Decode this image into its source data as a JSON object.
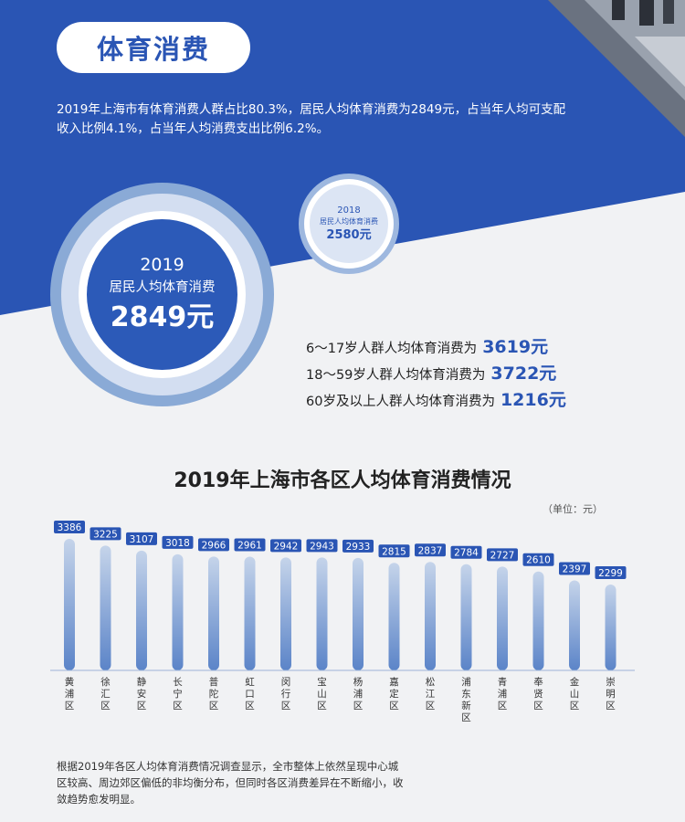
{
  "section_title": "体育消费",
  "intro_text": "2019年上海市有体育消费人群占比80.3%，居民人均体育消费为2849元，占当年人均可支配收入比例4.1%，占当年人均消费支出比例6.2%。",
  "circle_2019": {
    "year": "2019",
    "label": "居民人均体育消费",
    "value": "2849元"
  },
  "circle_2018": {
    "year": "2018",
    "label": "居民人均体育消费",
    "value": "2580元"
  },
  "age_stats": [
    {
      "label": "6～17岁人群人均体育消费为",
      "value": "3619元"
    },
    {
      "label": "18～59岁人群人均体育消费为",
      "value": "3722元"
    },
    {
      "label": "60岁及以上人群人均体育消费为",
      "value": "1216元"
    }
  ],
  "chart_data": {
    "type": "bar",
    "title": "2019年上海市各区人均体育消费情况",
    "unit_label": "（单位：元）",
    "categories": [
      "黄浦区",
      "徐汇区",
      "静安区",
      "长宁区",
      "普陀区",
      "虹口区",
      "闵行区",
      "宝山区",
      "杨浦区",
      "嘉定区",
      "松江区",
      "浦东新区",
      "青浦区",
      "奉贤区",
      "金山区",
      "崇明区"
    ],
    "values": [
      3386,
      3225,
      3107,
      3018,
      2966,
      2961,
      2942,
      2943,
      2933,
      2815,
      2837,
      2784,
      2727,
      2610,
      2397,
      2299
    ],
    "ylim": [
      0,
      3600
    ],
    "grid": false,
    "colors": {
      "bar_top": "#c5d4ea",
      "bar_bottom": "#5b84c8",
      "label_bg": "#2a55b4",
      "label_text": "#ffffff"
    }
  },
  "footnote": "根据2019年各区人均体育消费情况调查显示，全市整体上依然呈现中心城区较高、周边郊区偏低的非均衡分布，但同时各区消费差异在不断缩小，收敛趋势愈发明显。",
  "colors": {
    "primary": "#2a55b4",
    "background": "#f1f2f4"
  }
}
